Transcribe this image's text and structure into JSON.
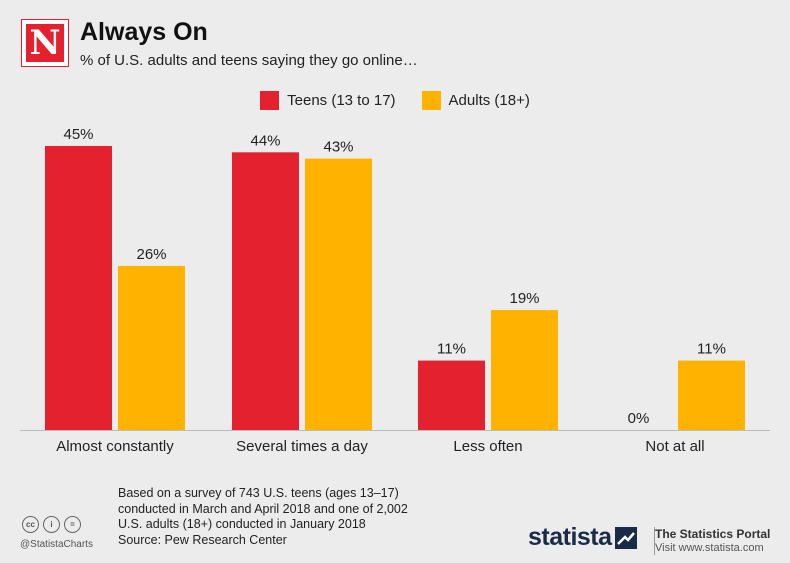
{
  "header": {
    "logo_letter": "N",
    "title": "Always On",
    "subtitle": "% of U.S. adults and teens saying they go online…"
  },
  "colors": {
    "teens": "#e4212e",
    "adults": "#ffb300"
  },
  "chart_data": {
    "type": "bar",
    "title": "Always On",
    "subtitle": "% of U.S. adults and teens saying they go online…",
    "categories": [
      "Almost constantly",
      "Several times a day",
      "Less often",
      "Not at all"
    ],
    "series": [
      {
        "name": "Teens (13 to 17)",
        "values": [
          45,
          44,
          11,
          0
        ],
        "labels": [
          "45%",
          "44%",
          "11%",
          "0%"
        ]
      },
      {
        "name": "Adults (18+)",
        "values": [
          26,
          43,
          19,
          11
        ],
        "labels": [
          "26%",
          "43%",
          "19%",
          "11%"
        ]
      }
    ],
    "ylim": [
      0,
      50
    ],
    "legend_position": "top-center",
    "grid": false,
    "xlabel": "",
    "ylabel": ""
  },
  "legend": {
    "teens_label": "Teens (13 to 17)",
    "adults_label": "Adults (18+)"
  },
  "footer": {
    "note_line1": "Based on a survey of 743 U.S. teens (ages 13–17)",
    "note_line2": "conducted in March and April 2018 and one of 2,002",
    "note_line3": "U.S. adults (18+) conducted in January 2018",
    "source": "Source: Pew Research Center",
    "cc_icon_1": "cc",
    "cc_icon_2": "i",
    "cc_icon_3": "=",
    "handle": "@StatistaCharts",
    "brand": "statista",
    "portal_title": "The Statistics Portal",
    "portal_url": "Visit www.statista.com"
  }
}
